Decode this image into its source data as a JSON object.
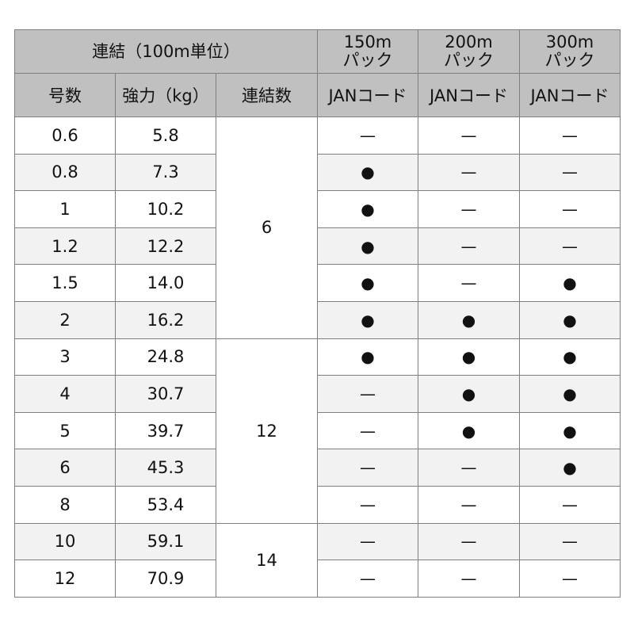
{
  "header": {
    "group_label": "連結（100m単位）",
    "packs": [
      {
        "length": "150m",
        "unit": "パック"
      },
      {
        "length": "200m",
        "unit": "パック"
      },
      {
        "length": "300m",
        "unit": "パック"
      }
    ],
    "columns": [
      "号数",
      "強力（kg）",
      "連結数",
      "JANコード",
      "JANコード",
      "JANコード"
    ]
  },
  "groups": [
    {
      "connections": "6",
      "rows": [
        {
          "size": "0.6",
          "strength": "5.8",
          "p150": "—",
          "p200": "—",
          "p300": "—"
        },
        {
          "size": "0.8",
          "strength": "7.3",
          "p150": "●",
          "p200": "—",
          "p300": "—"
        },
        {
          "size": "1",
          "strength": "10.2",
          "p150": "●",
          "p200": "—",
          "p300": "—"
        },
        {
          "size": "1.2",
          "strength": "12.2",
          "p150": "●",
          "p200": "—",
          "p300": "—"
        },
        {
          "size": "1.5",
          "strength": "14.0",
          "p150": "●",
          "p200": "—",
          "p300": "●"
        },
        {
          "size": "2",
          "strength": "16.2",
          "p150": "●",
          "p200": "●",
          "p300": "●"
        }
      ]
    },
    {
      "connections": "12",
      "rows": [
        {
          "size": "3",
          "strength": "24.8",
          "p150": "●",
          "p200": "●",
          "p300": "●"
        },
        {
          "size": "4",
          "strength": "30.7",
          "p150": "—",
          "p200": "●",
          "p300": "●"
        },
        {
          "size": "5",
          "strength": "39.7",
          "p150": "—",
          "p200": "●",
          "p300": "●"
        },
        {
          "size": "6",
          "strength": "45.3",
          "p150": "—",
          "p200": "—",
          "p300": "●"
        },
        {
          "size": "8",
          "strength": "53.4",
          "p150": "—",
          "p200": "—",
          "p300": "—"
        }
      ]
    },
    {
      "connections": "14",
      "rows": [
        {
          "size": "10",
          "strength": "59.1",
          "p150": "—",
          "p200": "—",
          "p300": "—"
        },
        {
          "size": "12",
          "strength": "70.9",
          "p150": "—",
          "p200": "—",
          "p300": "—"
        }
      ]
    }
  ]
}
